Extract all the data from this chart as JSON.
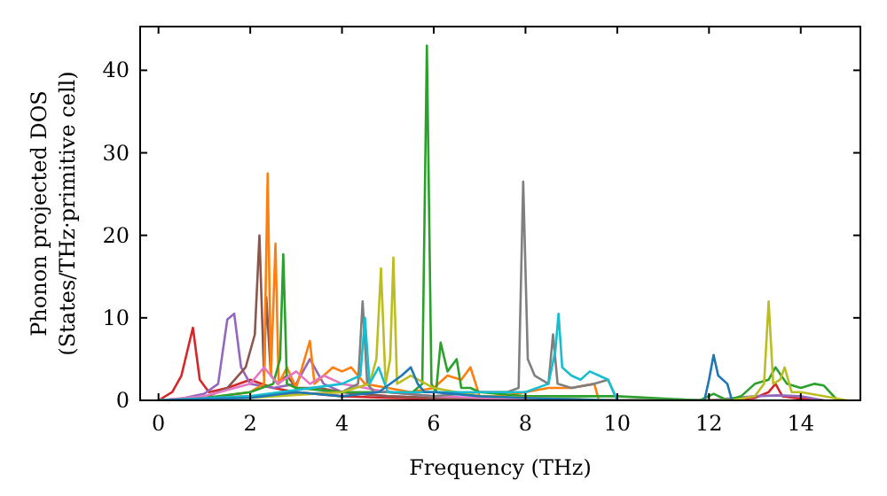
{
  "chart_data": {
    "type": "line",
    "xlabel": "Frequency (THz)",
    "ylabel": "Phonon projected DOS\n(States/THz·primitive cell)",
    "xlim": [
      -0.4,
      15.3
    ],
    "ylim": [
      0,
      45.3
    ],
    "xticks": [
      0,
      2,
      4,
      6,
      8,
      10,
      12,
      14
    ],
    "yticks": [
      0,
      10,
      20,
      30,
      40
    ],
    "grid": false,
    "line_style": "solid",
    "marker": "none",
    "series": [
      {
        "color": "#d62728",
        "x": [
          0,
          0.3,
          0.5,
          0.75,
          0.9,
          1.1,
          1.5,
          2,
          2.5,
          3,
          4,
          5,
          6,
          8,
          10,
          12,
          13,
          13.3,
          13.45,
          13.6,
          14,
          14.5
        ],
        "values": [
          0,
          1,
          3,
          8.8,
          2.5,
          1,
          1.5,
          2.5,
          1.5,
          1,
          0.5,
          0.3,
          0.2,
          0.2,
          0,
          0,
          0.3,
          1,
          2,
          0.5,
          0.2,
          0
        ]
      },
      {
        "color": "#9467bd",
        "x": [
          0,
          0.5,
          1,
          1.3,
          1.5,
          1.65,
          1.8,
          2,
          2.5,
          3,
          3.3,
          3.6,
          4,
          5,
          6,
          8,
          10,
          12,
          13,
          13.5,
          14,
          14.5
        ],
        "values": [
          0,
          0.2,
          0.8,
          2,
          9.8,
          10.5,
          4,
          2,
          1.5,
          2,
          5,
          2,
          1,
          0.5,
          0.3,
          0.2,
          0,
          0,
          0.5,
          0.6,
          0.5,
          0
        ]
      },
      {
        "color": "#8c564b",
        "x": [
          0,
          1,
          1.5,
          1.9,
          2.1,
          2.2,
          2.3,
          2.35,
          2.45,
          2.6,
          2.8,
          3,
          3.5,
          4,
          5,
          6,
          7,
          8,
          10
        ],
        "values": [
          0,
          0.3,
          1.5,
          4,
          8,
          20,
          3,
          12.5,
          3,
          2,
          3,
          1.5,
          1.5,
          1,
          0.5,
          0.3,
          0.2,
          0.1,
          0
        ]
      },
      {
        "color": "#ff7f0e",
        "x": [
          0,
          1,
          2,
          2.3,
          2.38,
          2.45,
          2.55,
          2.62,
          2.8,
          3,
          3.3,
          3.4,
          3.5,
          3.8,
          4,
          4.2,
          4.5,
          5,
          5.5,
          6,
          6.3,
          6.6,
          6.8,
          7,
          7.5,
          8,
          8.5,
          9,
          9.5,
          9.6,
          10
        ],
        "values": [
          0,
          0.2,
          1,
          2,
          27.5,
          3,
          19,
          2,
          4,
          1.5,
          7.2,
          2,
          2.5,
          4,
          3.5,
          4,
          2,
          1.5,
          1,
          1.5,
          3,
          2.5,
          4,
          0.5,
          0.5,
          1,
          1.5,
          1.5,
          2,
          0,
          0
        ]
      },
      {
        "color": "#2ca02c",
        "x": [
          0,
          1,
          2,
          2.5,
          2.65,
          2.72,
          2.8,
          3,
          4,
          5,
          5.5,
          5.75,
          5.85,
          5.95,
          6.05,
          6.15,
          6.3,
          6.5,
          6.6,
          6.8,
          7,
          8,
          10,
          11.8,
          12.1,
          12.4,
          12.7,
          13,
          13.3,
          13.45,
          13.7,
          14,
          14.3,
          14.5,
          14.8
        ],
        "values": [
          0,
          0.3,
          1,
          2,
          5,
          17.7,
          2,
          1.5,
          1,
          1,
          0.8,
          2,
          43,
          2,
          1,
          7,
          3.5,
          5,
          1.5,
          1.5,
          1,
          0.5,
          0.5,
          0,
          0.8,
          0,
          0.5,
          2,
          2.5,
          4,
          2,
          1.5,
          2,
          1.8,
          0
        ]
      },
      {
        "color": "#e377c2",
        "x": [
          0,
          1,
          2,
          2.3,
          2.6,
          3,
          3.3,
          3.6,
          4,
          4.5,
          5,
          6,
          7,
          8,
          10
        ],
        "values": [
          0,
          0.5,
          2,
          4,
          2,
          3.5,
          2,
          3,
          2,
          1.5,
          1,
          0.5,
          0.3,
          0.2,
          0
        ]
      },
      {
        "color": "#7f7f7f",
        "x": [
          0,
          2,
          4,
          4.35,
          4.45,
          4.55,
          4.7,
          5,
          6,
          7,
          7.6,
          7.85,
          7.95,
          8.05,
          8.2,
          8.5,
          8.6,
          8.7,
          9,
          9.5,
          9.8,
          10
        ],
        "values": [
          0,
          0.5,
          1,
          2,
          12,
          2,
          1,
          1,
          0.5,
          1,
          1,
          1.5,
          26.5,
          5,
          3,
          2,
          8,
          2,
          1.5,
          2,
          2.5,
          0
        ]
      },
      {
        "color": "#bcbd22",
        "x": [
          0,
          2,
          4,
          4.6,
          4.75,
          4.85,
          4.95,
          5.05,
          5.12,
          5.2,
          5.5,
          6,
          6.5,
          7,
          10,
          12.5,
          13,
          13.2,
          13.3,
          13.4,
          13.55,
          13.65,
          13.8,
          14,
          14.5,
          15
        ],
        "values": [
          0,
          0.3,
          1,
          2,
          5,
          16,
          2,
          5,
          17.3,
          2,
          3,
          1.5,
          1,
          0.5,
          0,
          0,
          0.5,
          2,
          12,
          2,
          2.5,
          4,
          1,
          1,
          0.5,
          0
        ]
      },
      {
        "color": "#17becf",
        "x": [
          0,
          2,
          4,
          4.4,
          4.5,
          4.6,
          4.8,
          5,
          6,
          7,
          8,
          8.5,
          8.65,
          8.72,
          8.8,
          9,
          9.2,
          9.4,
          9.6,
          9.8,
          10
        ],
        "values": [
          0,
          0.5,
          2,
          3,
          10,
          2,
          4,
          1,
          1,
          1,
          1,
          2,
          6,
          10.5,
          4,
          3,
          2.5,
          3.5,
          3,
          2.5,
          0
        ]
      },
      {
        "color": "#1f77b4",
        "x": [
          0,
          2,
          3,
          4,
          4.8,
          5.3,
          5.5,
          5.65,
          5.8,
          6,
          7,
          8,
          10,
          11.9,
          12,
          12.1,
          12.2,
          12.4,
          12.5
        ],
        "values": [
          0,
          0.3,
          1,
          0.5,
          1,
          3,
          4,
          2,
          1,
          1,
          0.5,
          0.3,
          0,
          0,
          2.5,
          5.5,
          3,
          2,
          0
        ]
      }
    ]
  }
}
